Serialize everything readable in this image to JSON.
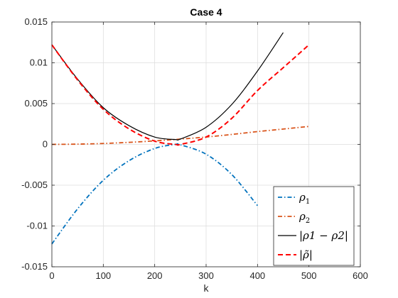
{
  "chart_data": {
    "type": "line",
    "title": "Case 4",
    "xlabel": "k",
    "ylabel": "",
    "xlim": [
      0,
      600
    ],
    "ylim": [
      -0.015,
      0.015
    ],
    "xticks": [
      0,
      100,
      200,
      300,
      400,
      500,
      600
    ],
    "xtick_labels": [
      "0",
      "100",
      "200",
      "300",
      "400",
      "500",
      "600"
    ],
    "yticks": [
      -0.015,
      -0.01,
      -0.005,
      0,
      0.005,
      0.01,
      0.015
    ],
    "ytick_labels": [
      "-0.015",
      "-0.01",
      "-0.005",
      "0",
      "0.005",
      "0.01",
      "0.015"
    ],
    "grid": true,
    "legend_position": "bottom-right",
    "x": [
      0,
      50,
      100,
      150,
      200,
      240,
      250,
      300,
      350,
      400,
      450,
      500
    ],
    "series": [
      {
        "name": "ρ1",
        "legend": {
          "base": "ρ",
          "sub": "1"
        },
        "color": "#0072BD",
        "dash": "dash-dot",
        "values": [
          -0.0122,
          -0.0079,
          -0.0044,
          -0.002,
          -0.0005,
          0.0,
          -5e-05,
          -0.0012,
          -0.0037,
          -0.0075,
          null,
          null
        ]
      },
      {
        "name": "ρ2",
        "legend": {
          "base": "ρ",
          "sub": "2"
        },
        "color": "#D95319",
        "dash": "dash-dot",
        "values": [
          0.0,
          3e-05,
          0.00011,
          0.00025,
          0.00043,
          0.0006,
          0.00065,
          0.0009,
          0.00122,
          0.00157,
          0.00188,
          0.0022
        ]
      },
      {
        "name": "|ρ1 − ρ2|",
        "legend": {
          "text": "|ρ1 − ρ2|"
        },
        "color": "#000000",
        "dash": "solid",
        "values": [
          0.0122,
          0.008,
          0.0045,
          0.0023,
          0.0009,
          0.0006,
          0.00066,
          0.0021,
          0.0049,
          0.009,
          0.0137,
          null
        ]
      },
      {
        "name": "|ρ̃|",
        "legend": {
          "text": "|ρ̃|"
        },
        "color": "#FF0000",
        "dash": "dashed",
        "values": [
          0.0122,
          0.0079,
          0.0043,
          0.0019,
          0.0004,
          0.0,
          0.0,
          0.0009,
          0.0032,
          0.0066,
          0.0094,
          0.0122
        ]
      }
    ]
  }
}
